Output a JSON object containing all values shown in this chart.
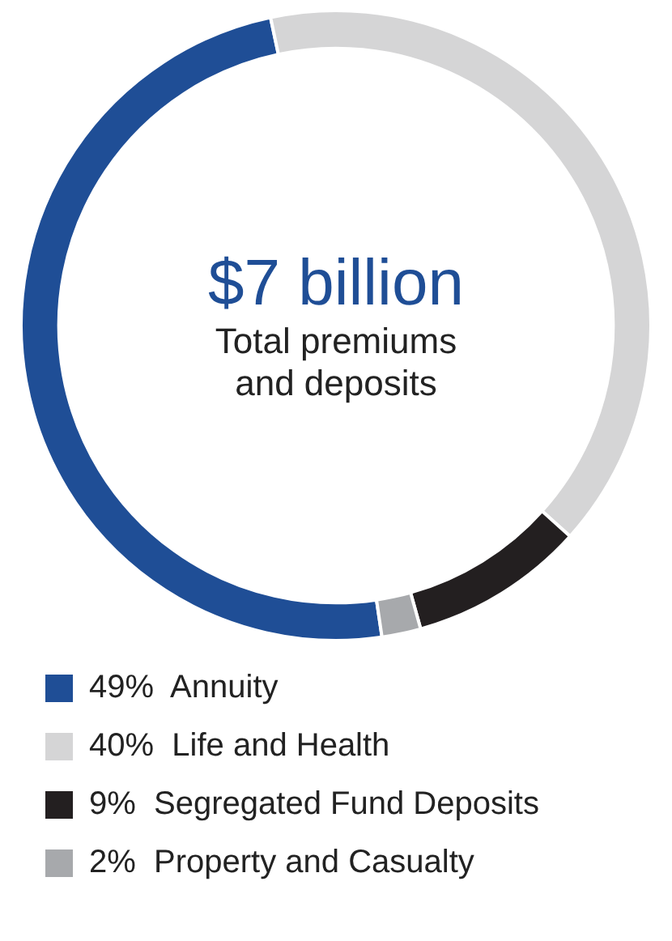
{
  "chart_data": {
    "type": "donut",
    "title": "$7 billion",
    "subtitle": "Total premiums and deposits",
    "categories": [
      "Annuity",
      "Life and Health",
      "Segregated Fund Deposits",
      "Property and Casualty"
    ],
    "values": [
      49,
      40,
      9,
      2
    ],
    "value_labels": [
      "49%",
      "40%",
      "9%",
      "2%"
    ],
    "colors": [
      "#1f4e96",
      "#d5d5d6",
      "#231f20",
      "#a7a9ac"
    ],
    "legend": "bottom"
  }
}
